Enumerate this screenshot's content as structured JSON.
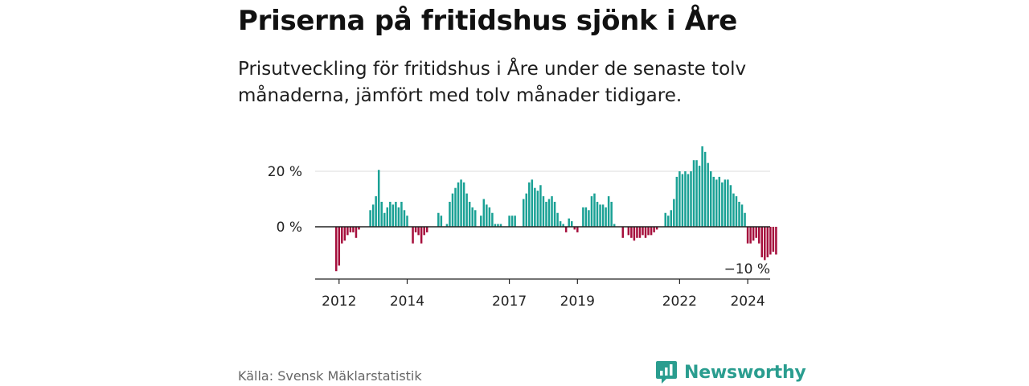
{
  "title": "Priserna på fritidshus sjönk i Åre",
  "subtitle": "Prisutveckling för fritidshus i Åre under de senaste tolv månaderna, jämfört med tolv månader tidigare.",
  "source": "Källa: Svensk Mäklarstatistik",
  "brand": "Newsworthy",
  "colors": {
    "positive": "#1aa195",
    "negative": "#a50f3c",
    "brand": "#2a9d8f"
  },
  "chart_data": {
    "type": "bar",
    "title": "",
    "xlabel": "",
    "ylabel": "",
    "ylim": [
      -20,
      30
    ],
    "yticks": [
      {
        "value": 0,
        "label": "0 %"
      },
      {
        "value": 20,
        "label": "20 %"
      }
    ],
    "xticks": [
      {
        "year": 2012,
        "label": "2012"
      },
      {
        "year": 2014,
        "label": "2014"
      },
      {
        "year": 2017,
        "label": "2017"
      },
      {
        "year": 2019,
        "label": "2019"
      },
      {
        "year": 2022,
        "label": "2022"
      },
      {
        "year": 2024,
        "label": "2024"
      }
    ],
    "start_date": "2011-12",
    "annotation": {
      "label": "−10 %",
      "value": -10
    },
    "values": [
      -16,
      -14,
      -6,
      -5,
      -3,
      -2,
      -2,
      -4,
      -1,
      0,
      0,
      0,
      6,
      8,
      11,
      20.5,
      9,
      5,
      7,
      9,
      8,
      9,
      7,
      9,
      6,
      4,
      0,
      -6,
      -2,
      -3,
      -6,
      -3,
      -2,
      0,
      0,
      0,
      5,
      4,
      0,
      1,
      9,
      12,
      14,
      16,
      17,
      16,
      12,
      9,
      7,
      6,
      0,
      4,
      10,
      8,
      7,
      5,
      1,
      1,
      1,
      0,
      0,
      4,
      4,
      4,
      0,
      0,
      10,
      12,
      16,
      17,
      14,
      13,
      15,
      11,
      9,
      10,
      11,
      9,
      5,
      2,
      1,
      -2,
      3,
      2,
      -1,
      -2,
      0,
      7,
      7,
      6,
      11,
      12,
      9,
      8,
      8,
      7,
      11,
      9,
      1,
      0,
      0,
      -4,
      0,
      -3,
      -4,
      -5,
      -4,
      -4,
      -3,
      -4,
      -3,
      -3,
      -2,
      -1,
      0,
      0,
      5,
      4,
      6,
      10,
      18,
      20,
      19,
      20,
      19,
      20,
      24,
      24,
      22,
      29,
      27,
      23,
      20,
      18,
      17,
      18,
      16,
      17,
      17,
      15,
      12,
      11,
      9,
      8,
      5,
      -6,
      -6,
      -5,
      -4,
      -6,
      -11,
      -12,
      -11,
      -10,
      -9,
      -10
    ]
  }
}
